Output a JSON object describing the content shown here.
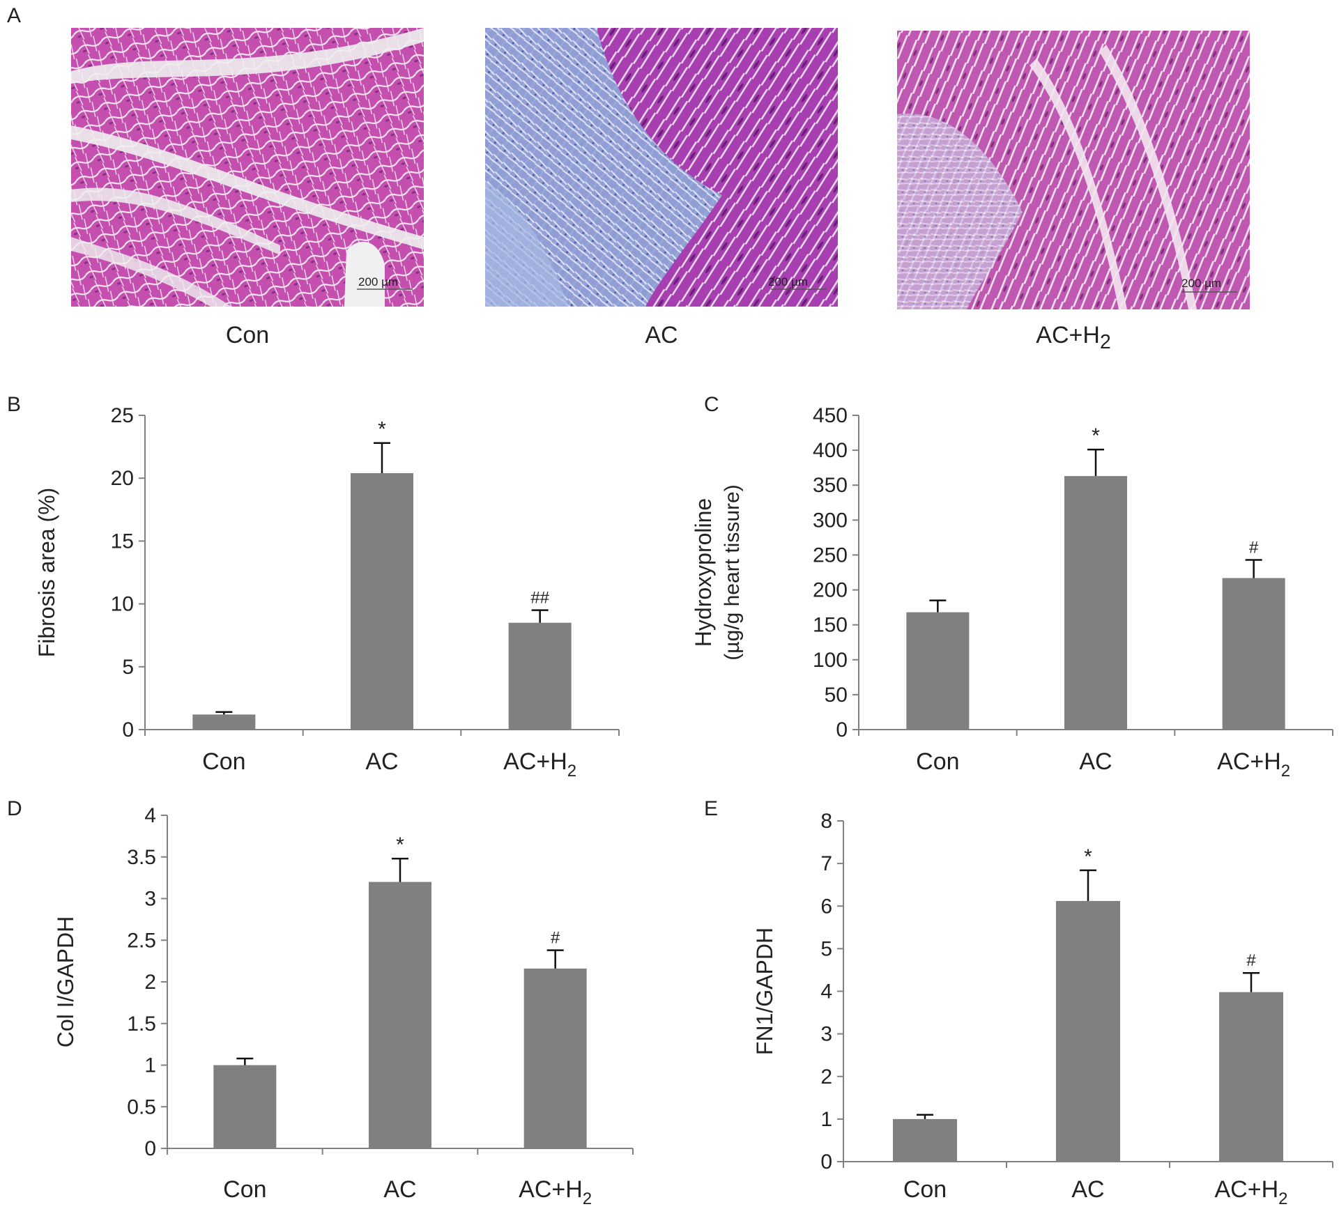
{
  "figure": {
    "panel_a": {
      "letter": "A",
      "images": [
        {
          "caption": "Con",
          "caption_sub": "",
          "scale_label": "200 µm",
          "stain": "control"
        },
        {
          "caption": "AC",
          "caption_sub": "",
          "scale_label": "200 µm",
          "stain": "fibrotic"
        },
        {
          "caption": "AC+H",
          "caption_sub": "2",
          "scale_label": "200 µm",
          "stain": "treated"
        }
      ]
    },
    "colors": {
      "bar": "#808080",
      "axis": "#808080",
      "text": "#222222"
    }
  },
  "chart_data": [
    {
      "panel": "B",
      "type": "bar",
      "categories": [
        "Con",
        "AC",
        "AC+H"
      ],
      "category_subscripts": [
        "",
        "",
        "2"
      ],
      "values": [
        1.2,
        20.4,
        8.5
      ],
      "errors": [
        0.2,
        2.4,
        1.0
      ],
      "annotations": [
        "",
        "*",
        "##"
      ],
      "ylabel": "Fibrosis area (%)",
      "ylabel_line2": "",
      "ylim": [
        0,
        25
      ],
      "yticks": [
        0,
        5,
        10,
        15,
        20,
        25
      ]
    },
    {
      "panel": "C",
      "type": "bar",
      "categories": [
        "Con",
        "AC",
        "AC+H"
      ],
      "category_subscripts": [
        "",
        "",
        "2"
      ],
      "values": [
        168,
        363,
        217
      ],
      "errors": [
        17,
        38,
        26
      ],
      "annotations": [
        "",
        "*",
        "#"
      ],
      "ylabel": "Hydroxyproline",
      "ylabel_line2": "(µg/g heart tissure)",
      "ylim": [
        0,
        450
      ],
      "yticks": [
        0,
        50,
        100,
        150,
        200,
        250,
        300,
        350,
        400,
        450
      ]
    },
    {
      "panel": "D",
      "type": "bar",
      "categories": [
        "Con",
        "AC",
        "AC+H"
      ],
      "category_subscripts": [
        "",
        "",
        "2"
      ],
      "values": [
        1.0,
        3.2,
        2.16
      ],
      "errors": [
        0.08,
        0.28,
        0.22
      ],
      "annotations": [
        "",
        "*",
        "#"
      ],
      "ylabel": "Col I/GAPDH",
      "ylabel_line2": "",
      "ylim": [
        0,
        4
      ],
      "yticks": [
        "0",
        "0.5",
        "1",
        "1.5",
        "2",
        "2.5",
        "3",
        "3.5",
        "4"
      ]
    },
    {
      "panel": "E",
      "type": "bar",
      "categories": [
        "Con",
        "AC",
        "AC+H"
      ],
      "category_subscripts": [
        "",
        "",
        "2"
      ],
      "values": [
        1.0,
        6.12,
        3.98
      ],
      "errors": [
        0.1,
        0.72,
        0.45
      ],
      "annotations": [
        "",
        "*",
        "#"
      ],
      "ylabel": "FN1/GAPDH",
      "ylabel_line2": "",
      "ylim": [
        0,
        8
      ],
      "yticks": [
        0,
        1,
        2,
        3,
        4,
        5,
        6,
        7,
        8
      ]
    }
  ]
}
